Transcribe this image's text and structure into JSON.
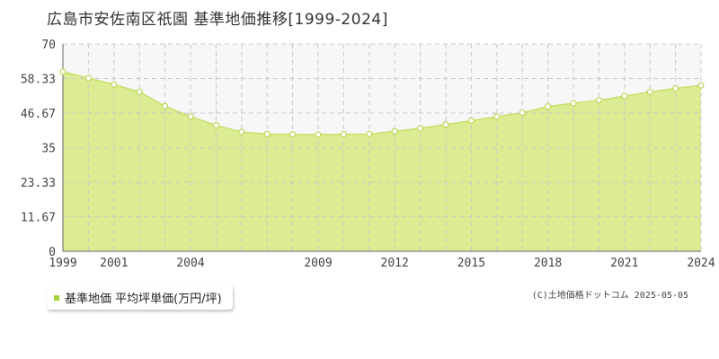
{
  "colors": {
    "fill": "#dcec93",
    "line": "#c6e06a",
    "marker_stroke": "#bcd855",
    "marker_fill": "#ffffff",
    "plot_bg_upper": "#f7f7fa",
    "grid": "#c8c8c8"
  },
  "legend": {
    "label": "基準地価 平均坪単価(万円/坪)",
    "swatch_color": "#a8d23c"
  },
  "source_note": "(C)土地価格ドットコム 2025-05-05",
  "chart_data": {
    "type": "area",
    "title": "広島市安佐南区祇園 基準地価推移[1999-2024]",
    "xlabel": "",
    "ylabel": "",
    "x": [
      1999,
      2000,
      2001,
      2002,
      2003,
      2004,
      2005,
      2006,
      2007,
      2008,
      2009,
      2010,
      2011,
      2012,
      2013,
      2014,
      2015,
      2016,
      2017,
      2018,
      2019,
      2020,
      2021,
      2022,
      2023,
      2024
    ],
    "series": [
      {
        "name": "基準地価 平均坪単価(万円/坪)",
        "values": [
          60.6,
          58.5,
          56.3,
          53.8,
          49.0,
          45.5,
          42.5,
          40.3,
          39.6,
          39.5,
          39.4,
          39.5,
          39.6,
          40.5,
          41.5,
          42.8,
          44.1,
          45.5,
          46.8,
          48.9,
          50.0,
          51.0,
          52.4,
          53.8,
          55.0,
          56.0
        ]
      }
    ],
    "xlim": [
      1999,
      2024
    ],
    "ylim": [
      0,
      70
    ],
    "y_ticks": [
      "0",
      "11.67",
      "23.33",
      "35",
      "46.67",
      "58.33",
      "70"
    ],
    "y_tick_values": [
      0,
      11.67,
      23.33,
      35,
      46.67,
      58.33,
      70
    ],
    "x_tick_labels": [
      "1999",
      "2001",
      "2004",
      "2009",
      "2012",
      "2015",
      "2018",
      "2021",
      "2024"
    ],
    "x_tick_values": [
      1999,
      2001,
      2004,
      2009,
      2012,
      2015,
      2018,
      2021,
      2024
    ],
    "grid": true,
    "legend_position": "bottom-left"
  }
}
